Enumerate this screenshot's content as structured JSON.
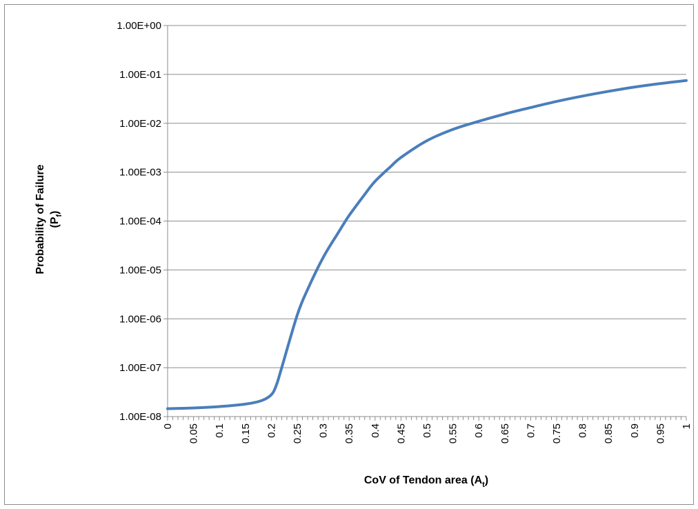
{
  "chart_data": {
    "type": "line",
    "title": "",
    "xlabel": "CoV of Tendon area (A",
    "xlabel_subscript": "t",
    "xlabel_suffix": ")",
    "ylabel_line1": "Probability of Failure",
    "ylabel_line2_prefix": "(P",
    "ylabel_line2_subscript": "f",
    "ylabel_line2_suffix": ")",
    "y_scale": "log",
    "ylim": [
      1e-08,
      1
    ],
    "xlim": [
      0,
      1
    ],
    "grid": "horizontal major gridlines",
    "legend": "none",
    "x_tick_labels": [
      "0",
      "0.05",
      "0.1",
      "0.15",
      "0.2",
      "0.25",
      "0.3",
      "0.35",
      "0.4",
      "0.45",
      "0.5",
      "0.55",
      "0.6",
      "0.65",
      "0.7",
      "0.75",
      "0.8",
      "0.85",
      "0.9",
      "0.95",
      "1"
    ],
    "y_tick_labels": [
      "1.00E-08",
      "1.00E-07",
      "1.00E-06",
      "1.00E-05",
      "1.00E-04",
      "1.00E-03",
      "1.00E-02",
      "1.00E-01",
      "1.00E+00"
    ],
    "y_tick_values": [
      1e-08,
      1e-07,
      1e-06,
      1e-05,
      0.0001,
      0.001,
      0.01,
      0.1,
      1
    ],
    "series": [
      {
        "color": "#4a7ebb",
        "x": [
          0,
          0.05,
          0.1,
          0.15,
          0.18,
          0.2,
          0.21,
          0.22,
          0.25,
          0.27,
          0.3,
          0.33,
          0.35,
          0.38,
          0.4,
          0.43,
          0.45,
          0.5,
          0.55,
          0.6,
          0.65,
          0.7,
          0.75,
          0.8,
          0.85,
          0.9,
          0.95,
          1.0
        ],
        "y": [
          1.45e-08,
          1.5e-08,
          1.6e-08,
          1.8e-08,
          2.1e-08,
          2.8e-08,
          4.5e-08,
          1e-07,
          1.2e-06,
          4e-06,
          1.8e-05,
          6e-05,
          0.00013,
          0.00035,
          0.00065,
          0.0013,
          0.002,
          0.0044,
          0.0075,
          0.011,
          0.0155,
          0.021,
          0.028,
          0.036,
          0.045,
          0.055,
          0.065,
          0.075
        ]
      }
    ]
  }
}
